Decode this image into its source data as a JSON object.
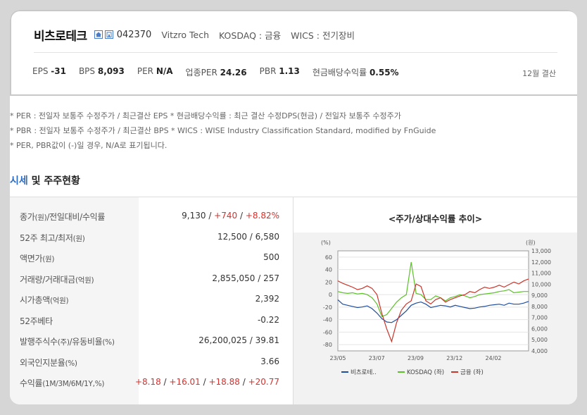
{
  "header": {
    "company_name": "비츠로테크",
    "code": "042370",
    "english_name": "Vitzro Tech",
    "market": "KOSDAQ : 금융",
    "wics": "WICS : 전기장비",
    "fiscal_note": "12월 결산",
    "stats": [
      {
        "label": "EPS",
        "value": "-31"
      },
      {
        "label": "BPS",
        "value": "8,093"
      },
      {
        "label": "PER",
        "value": "N/A"
      },
      {
        "label": "업종PER",
        "value": "24.26"
      },
      {
        "label": "PBR",
        "value": "1.13"
      },
      {
        "label": "현금배당수익률",
        "value": "0.55%"
      }
    ]
  },
  "notes": [
    "* PER : 전일자 보통주 수정주가 / 최근결산 EPS * 현금배당수익률 : 최근 결산 수정DPS(현금) / 전일자 보통주 수정주가",
    "* PBR : 전일자 보통주 수정주가 / 최근결산 BPS * WICS : WISE Industry Classification Standard, modified by FnGuide",
    "* PER, PBR값이 (-)일 경우, N/A로 표기됩니다."
  ],
  "section": {
    "title_highlight": "시세",
    "title_rest": " 및 주주현황"
  },
  "table": {
    "rows": [
      {
        "label": "종가",
        "unit": "(원)",
        "label2": "/전일대비/수익률",
        "value": "9,130",
        "parts": [
          "+740",
          "+8.82%"
        ]
      },
      {
        "label": "52주 최고/최저",
        "unit": "(원)",
        "value": "12,500 / 6,580"
      },
      {
        "label": "액면가",
        "unit": "(원)",
        "value": "500"
      },
      {
        "label": "거래량/거래대금",
        "unit": "(억원)",
        "value": "2,855,050 / 257"
      },
      {
        "label": "시가총액",
        "unit": "(억원)",
        "value": "2,392"
      },
      {
        "label": "52주베타",
        "unit": "",
        "value": "-0.22"
      },
      {
        "label": "발행주식수",
        "unit": "(주)",
        "label2": "/유동비율",
        "unit2": "(%)",
        "value": "26,200,025 / 39.81"
      },
      {
        "label": "외국인지분율",
        "unit": "(%)",
        "value": "3.66"
      },
      {
        "label": "수익률",
        "unit": "(1M/3M/6M/1Y,%)",
        "parts": [
          "+8.18",
          "+16.01",
          "+18.88",
          "+20.77"
        ]
      }
    ]
  },
  "chart_data": {
    "type": "line",
    "title": "<주가/상대수익률 추이>",
    "left_axis_unit": "(%)",
    "right_axis_unit": "(원)",
    "left_ticks": [
      "60",
      "40",
      "20",
      "0",
      "-20",
      "-40",
      "-60",
      "-80"
    ],
    "right_ticks": [
      "13,000",
      "12,000",
      "11,000",
      "10,000",
      "9,000",
      "8,000",
      "7,000",
      "6,000",
      "5,000",
      "4,000"
    ],
    "x_ticks": [
      "23/05",
      "23/07",
      "23/09",
      "23/12",
      "24/02"
    ],
    "left_range": [
      -90,
      70
    ],
    "right_range": [
      4000,
      13000
    ],
    "grid": true,
    "legend_position": "bottom",
    "legend": [
      {
        "name": "비츠로테..",
        "color": "#1f4e9e"
      },
      {
        "name": "KOSDAQ (좌)",
        "color": "#5cc129"
      },
      {
        "name": "금융 (좌)",
        "color": "#c8352a"
      }
    ],
    "series": [
      {
        "name": "비츠로테..",
        "axis": "right",
        "color": "#1f4e9e",
        "values": [
          8600,
          8200,
          8100,
          8000,
          7900,
          7950,
          8050,
          7800,
          7400,
          6900,
          6600,
          6550,
          6800,
          7200,
          7600,
          8100,
          8300,
          8400,
          8200,
          7900,
          8000,
          8100,
          8050,
          7950,
          8100,
          8000,
          7900,
          7800,
          7850,
          7950,
          8000,
          8100,
          8150,
          8200,
          8100,
          8300,
          8200,
          8200,
          8300,
          8450
        ]
      },
      {
        "name": "KOSDAQ (좌)",
        "axis": "left",
        "color": "#5cc129",
        "values": [
          5,
          3,
          2,
          3,
          1,
          2,
          0,
          -5,
          -15,
          -35,
          -32,
          -22,
          -12,
          -5,
          0,
          52,
          2,
          0,
          -8,
          -8,
          -2,
          -5,
          -10,
          -5,
          -3,
          0,
          -2,
          -5,
          -3,
          0,
          1,
          2,
          3,
          5,
          6,
          8,
          3,
          4,
          5,
          5
        ]
      },
      {
        "name": "금융 (좌)",
        "axis": "left",
        "color": "#c8352a",
        "values": [
          22,
          18,
          15,
          12,
          8,
          10,
          14,
          10,
          0,
          -30,
          -55,
          -75,
          -45,
          -25,
          -15,
          -10,
          17,
          13,
          -10,
          -15,
          -8,
          -5,
          -12,
          -8,
          -5,
          -2,
          0,
          5,
          3,
          8,
          12,
          10,
          12,
          15,
          12,
          16,
          20,
          17,
          22,
          25
        ]
      }
    ]
  }
}
